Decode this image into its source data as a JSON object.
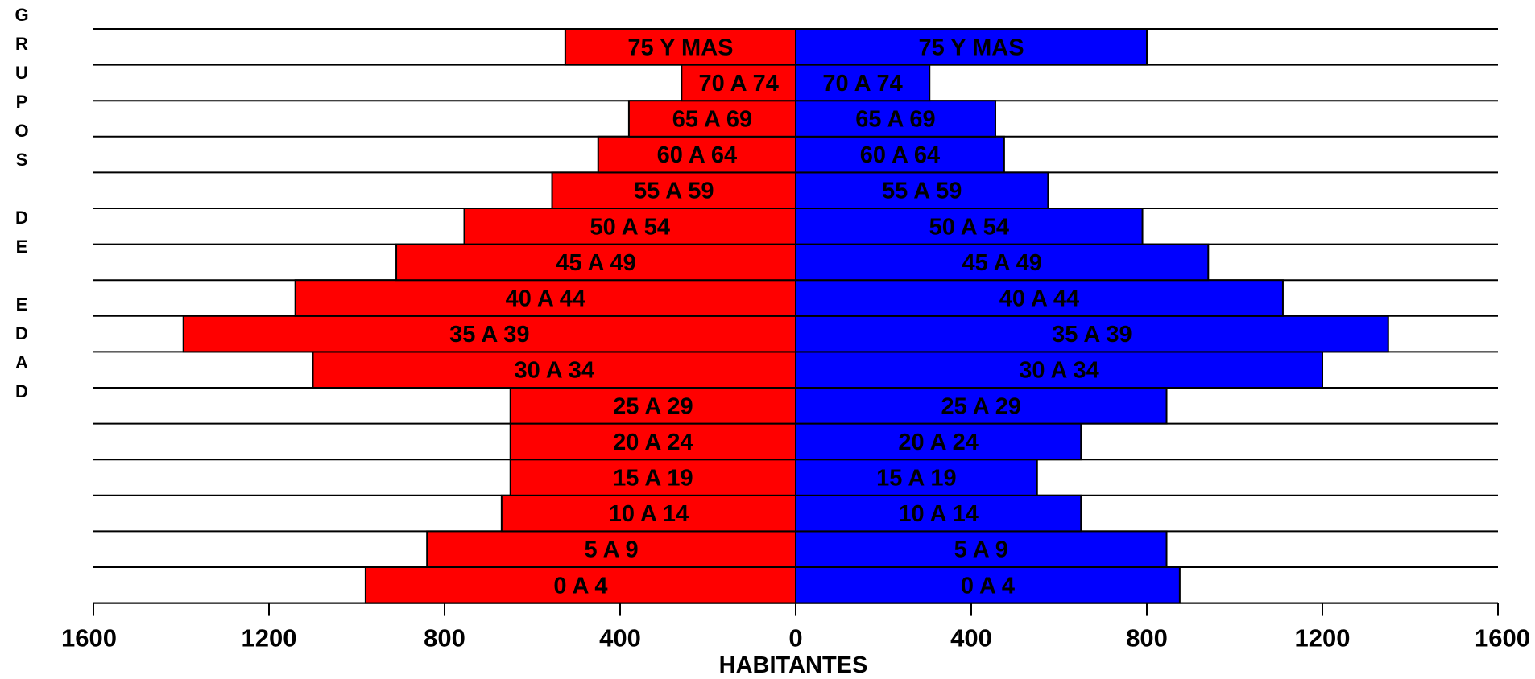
{
  "chart_data": {
    "type": "bar",
    "subtype": "population-pyramid",
    "ylabel": "GRUPOS DE EDAD",
    "xlabel": "HABITANTES",
    "xlim": [
      -1600,
      1600
    ],
    "xticks": [
      -1600,
      -1200,
      -800,
      -400,
      0,
      400,
      800,
      1200,
      1600
    ],
    "xtick_labels": [
      "1600",
      "1200",
      "800",
      "400",
      "0",
      "400",
      "800",
      "1200",
      "1600"
    ],
    "grid": "horizontal",
    "legend": "none",
    "categories": [
      "0  A  4",
      "5  A  9",
      "10 A 14",
      "15 A 19",
      "20 A 24",
      "25 A 29",
      "30 A 34",
      "35 A 39",
      "40 A 44",
      "45 A 49",
      "50 A 54",
      "55 A 59",
      "60 A 64",
      "65 A 69",
      "70 A 74",
      "75 Y MAS"
    ],
    "series": [
      {
        "side": "left",
        "color": "#ff0000",
        "values": [
          980,
          840,
          670,
          650,
          650,
          650,
          1100,
          1395,
          1140,
          910,
          755,
          555,
          450,
          380,
          260,
          525
        ]
      },
      {
        "side": "right",
        "color": "#0000ff",
        "values": [
          875,
          845,
          650,
          550,
          650,
          845,
          1200,
          1350,
          1110,
          940,
          790,
          575,
          475,
          455,
          305,
          800
        ]
      }
    ]
  }
}
